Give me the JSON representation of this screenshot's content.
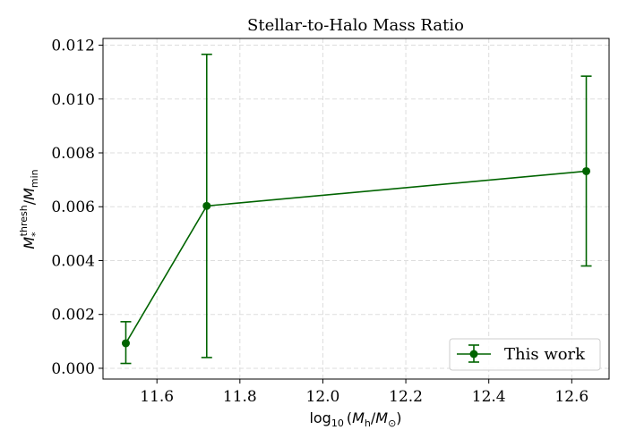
{
  "chart_data": {
    "type": "line",
    "title": "Stellar-to-Halo Mass Ratio",
    "xlabel_parts": {
      "prefix": "log",
      "sub": "10",
      "open": "(",
      "num": "M",
      "num_sub": "h",
      "slash": "/",
      "den": "M",
      "den_sub": "⊙",
      "close": ")"
    },
    "ylabel_parts": {
      "num": "M",
      "num_sub": "*",
      "num_sup": "thresh",
      "slash": "/",
      "den": "M",
      "den_sub": "min"
    },
    "xlim": [
      11.47,
      12.69
    ],
    "ylim": [
      -0.0004,
      0.01225
    ],
    "xticks": [
      11.6,
      11.8,
      12.0,
      12.2,
      12.4,
      12.6
    ],
    "xtick_labels": [
      "11.6",
      "11.8",
      "12.0",
      "12.2",
      "12.4",
      "12.6"
    ],
    "yticks": [
      0.0,
      0.002,
      0.004,
      0.006,
      0.008,
      0.01,
      0.012
    ],
    "ytick_labels": [
      "0.000",
      "0.002",
      "0.004",
      "0.006",
      "0.008",
      "0.010",
      "0.012"
    ],
    "grid": true,
    "legend_position": "lower-right",
    "series": [
      {
        "name": "This work",
        "color": "#006400",
        "x": [
          11.525,
          11.72,
          12.635
        ],
        "y": [
          0.00093,
          0.00603,
          0.00732
        ],
        "yerr_low": [
          0.00075,
          0.00563,
          0.00352
        ],
        "yerr_high": [
          0.0008,
          0.00563,
          0.00353
        ]
      }
    ]
  }
}
